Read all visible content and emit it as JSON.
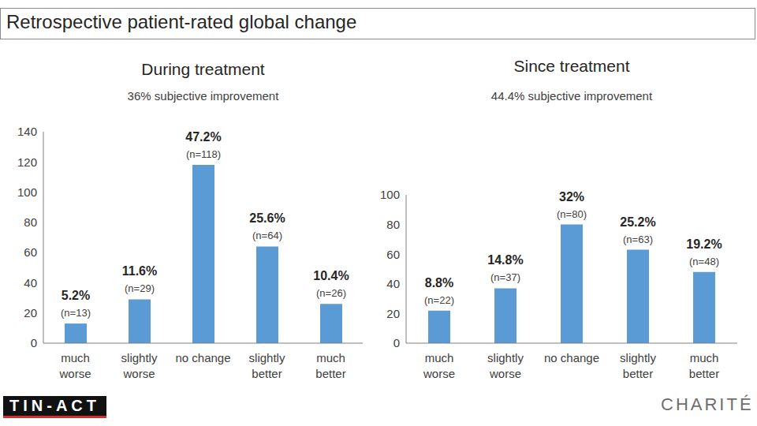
{
  "title": "Retrospective patient-rated global change",
  "logos": [
    "TIN-ACT",
    "CHARITÉ"
  ],
  "chart_data": [
    {
      "type": "bar",
      "title": "During treatment",
      "subtitle": "36% subjective improvement",
      "categories": [
        "much worse",
        "slightly worse",
        "no change",
        "slightly better",
        "much better"
      ],
      "values": [
        13,
        29,
        118,
        64,
        26
      ],
      "value_labels": [
        "(n=13)",
        "(n=29)",
        "(n=118)",
        "(n=64)",
        "(n=26)"
      ],
      "percent_labels": [
        "5.2%",
        "11.6%",
        "47.2%",
        "25.6%",
        "10.4%"
      ],
      "color": "#5b9bd5",
      "ylim": [
        0,
        140
      ],
      "yticks": [
        0,
        20,
        40,
        60,
        80,
        100,
        120,
        140
      ],
      "grid": false,
      "data_labels": true
    },
    {
      "type": "bar",
      "title": "Since treatment",
      "subtitle": "44.4% subjective improvement",
      "categories": [
        "much worse",
        "slightly worse",
        "no change",
        "slightly better",
        "much better"
      ],
      "values": [
        22,
        37,
        80,
        63,
        48
      ],
      "value_labels": [
        "(n=22)",
        "(n=37)",
        "(n=80)",
        "(n=63)",
        "(n=48)"
      ],
      "percent_labels": [
        "8.8%",
        "14.8%",
        "32%",
        "25.2%",
        "19.2%"
      ],
      "color": "#5b9bd5",
      "ylim": [
        0,
        100
      ],
      "yticks": [
        0,
        20,
        40,
        60,
        80,
        100
      ],
      "grid": false,
      "data_labels": true
    }
  ]
}
